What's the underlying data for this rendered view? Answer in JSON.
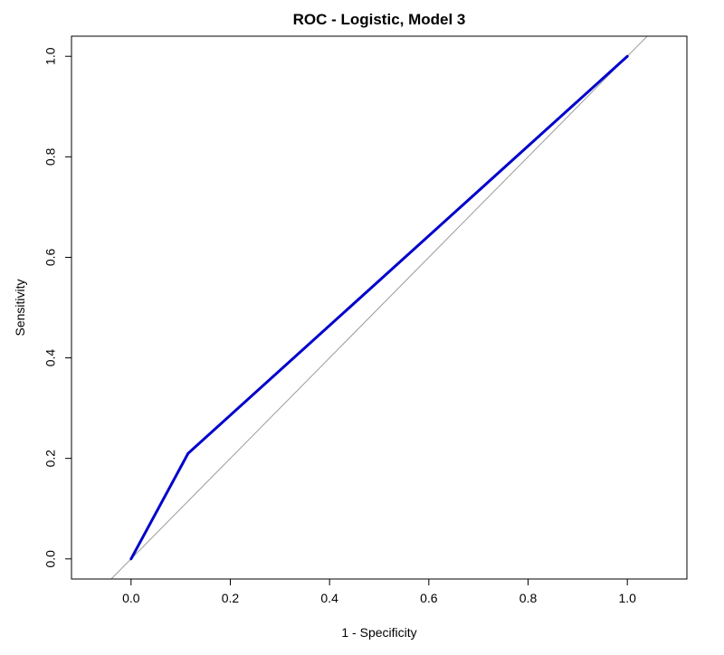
{
  "chart_data": {
    "type": "line",
    "title": "ROC - Logistic, Model 3",
    "xlabel": "1 - Specificity",
    "ylabel": "Sensitivity",
    "xlim": [
      -0.12,
      1.12
    ],
    "ylim": [
      -0.04,
      1.04
    ],
    "x_ticks": [
      0.0,
      0.2,
      0.4,
      0.6,
      0.8,
      1.0
    ],
    "x_tick_labels": [
      "0.0",
      "0.2",
      "0.4",
      "0.6",
      "0.8",
      "1.0"
    ],
    "y_ticks": [
      0.0,
      0.2,
      0.4,
      0.6,
      0.8,
      1.0
    ],
    "y_tick_labels": [
      "0.0",
      "0.2",
      "0.4",
      "0.6",
      "0.8",
      "1.0"
    ],
    "grid": false,
    "series": [
      {
        "x": [
          0.0,
          0.115,
          1.0
        ],
        "y": [
          0.0,
          0.21,
          1.0
        ],
        "color": "#0000cc"
      }
    ],
    "reference_line": {
      "intercept": 0,
      "slope": 1,
      "color": "#9a9a9a"
    }
  }
}
